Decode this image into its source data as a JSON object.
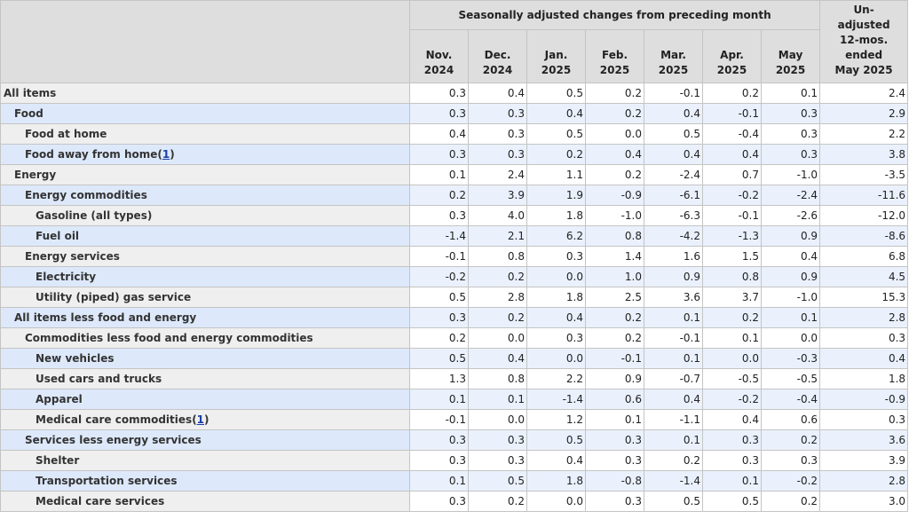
{
  "header": {
    "group_label": "Seasonally adjusted changes from preceding month",
    "months": [
      [
        "Nov.",
        "2024"
      ],
      [
        "Dec.",
        "2024"
      ],
      [
        "Jan.",
        "2025"
      ],
      [
        "Feb.",
        "2025"
      ],
      [
        "Mar.",
        "2025"
      ],
      [
        "Apr.",
        "2025"
      ],
      [
        "May",
        "2025"
      ]
    ],
    "unadjusted": [
      "Un-",
      "adjusted",
      "12-mos.",
      "ended",
      "May 2025"
    ]
  },
  "rows": [
    {
      "label": "All items",
      "level": 0,
      "values": [
        "0.3",
        "0.4",
        "0.5",
        "0.2",
        "-0.1",
        "0.2",
        "0.1"
      ],
      "unadjusted": "2.4"
    },
    {
      "label": "Food",
      "level": 1,
      "values": [
        "0.3",
        "0.3",
        "0.4",
        "0.2",
        "0.4",
        "-0.1",
        "0.3"
      ],
      "unadjusted": "2.9"
    },
    {
      "label": "Food at home",
      "level": 2,
      "values": [
        "0.4",
        "0.3",
        "0.5",
        "0.0",
        "0.5",
        "-0.4",
        "0.3"
      ],
      "unadjusted": "2.2"
    },
    {
      "label": "Food away from home",
      "note": "1",
      "level": 2,
      "values": [
        "0.3",
        "0.3",
        "0.2",
        "0.4",
        "0.4",
        "0.4",
        "0.3"
      ],
      "unadjusted": "3.8"
    },
    {
      "label": "Energy",
      "level": 1,
      "values": [
        "0.1",
        "2.4",
        "1.1",
        "0.2",
        "-2.4",
        "0.7",
        "-1.0"
      ],
      "unadjusted": "-3.5"
    },
    {
      "label": "Energy commodities",
      "level": 2,
      "values": [
        "0.2",
        "3.9",
        "1.9",
        "-0.9",
        "-6.1",
        "-0.2",
        "-2.4"
      ],
      "unadjusted": "-11.6"
    },
    {
      "label": "Gasoline (all types)",
      "level": 3,
      "values": [
        "0.3",
        "4.0",
        "1.8",
        "-1.0",
        "-6.3",
        "-0.1",
        "-2.6"
      ],
      "unadjusted": "-12.0"
    },
    {
      "label": "Fuel oil",
      "level": 3,
      "values": [
        "-1.4",
        "2.1",
        "6.2",
        "0.8",
        "-4.2",
        "-1.3",
        "0.9"
      ],
      "unadjusted": "-8.6"
    },
    {
      "label": "Energy services",
      "level": 2,
      "values": [
        "-0.1",
        "0.8",
        "0.3",
        "1.4",
        "1.6",
        "1.5",
        "0.4"
      ],
      "unadjusted": "6.8"
    },
    {
      "label": "Electricity",
      "level": 3,
      "values": [
        "-0.2",
        "0.2",
        "0.0",
        "1.0",
        "0.9",
        "0.8",
        "0.9"
      ],
      "unadjusted": "4.5"
    },
    {
      "label": "Utility (piped) gas service",
      "level": 3,
      "values": [
        "0.5",
        "2.8",
        "1.8",
        "2.5",
        "3.6",
        "3.7",
        "-1.0"
      ],
      "unadjusted": "15.3"
    },
    {
      "label": "All items less food and energy",
      "level": 1,
      "values": [
        "0.3",
        "0.2",
        "0.4",
        "0.2",
        "0.1",
        "0.2",
        "0.1"
      ],
      "unadjusted": "2.8"
    },
    {
      "label": "Commodities less food and energy commodities",
      "level": 2,
      "values": [
        "0.2",
        "0.0",
        "0.3",
        "0.2",
        "-0.1",
        "0.1",
        "0.0"
      ],
      "unadjusted": "0.3"
    },
    {
      "label": "New vehicles",
      "level": 3,
      "values": [
        "0.5",
        "0.4",
        "0.0",
        "-0.1",
        "0.1",
        "0.0",
        "-0.3"
      ],
      "unadjusted": "0.4"
    },
    {
      "label": "Used cars and trucks",
      "level": 3,
      "values": [
        "1.3",
        "0.8",
        "2.2",
        "0.9",
        "-0.7",
        "-0.5",
        "-0.5"
      ],
      "unadjusted": "1.8"
    },
    {
      "label": "Apparel",
      "level": 3,
      "values": [
        "0.1",
        "0.1",
        "-1.4",
        "0.6",
        "0.4",
        "-0.2",
        "-0.4"
      ],
      "unadjusted": "-0.9"
    },
    {
      "label": "Medical care commodities",
      "note": "1",
      "level": 3,
      "values": [
        "-0.1",
        "0.0",
        "1.2",
        "0.1",
        "-1.1",
        "0.4",
        "0.6"
      ],
      "unadjusted": "0.3"
    },
    {
      "label": "Services less energy services",
      "level": 2,
      "values": [
        "0.3",
        "0.3",
        "0.5",
        "0.3",
        "0.1",
        "0.3",
        "0.2"
      ],
      "unadjusted": "3.6"
    },
    {
      "label": "Shelter",
      "level": 3,
      "values": [
        "0.3",
        "0.3",
        "0.4",
        "0.3",
        "0.2",
        "0.3",
        "0.3"
      ],
      "unadjusted": "3.9"
    },
    {
      "label": "Transportation services",
      "level": 3,
      "values": [
        "0.1",
        "0.5",
        "1.8",
        "-0.8",
        "-1.4",
        "0.1",
        "-0.2"
      ],
      "unadjusted": "2.8"
    },
    {
      "label": "Medical care services",
      "level": 3,
      "values": [
        "0.3",
        "0.2",
        "0.0",
        "0.3",
        "0.5",
        "0.5",
        "0.2"
      ],
      "unadjusted": "3.0"
    }
  ]
}
